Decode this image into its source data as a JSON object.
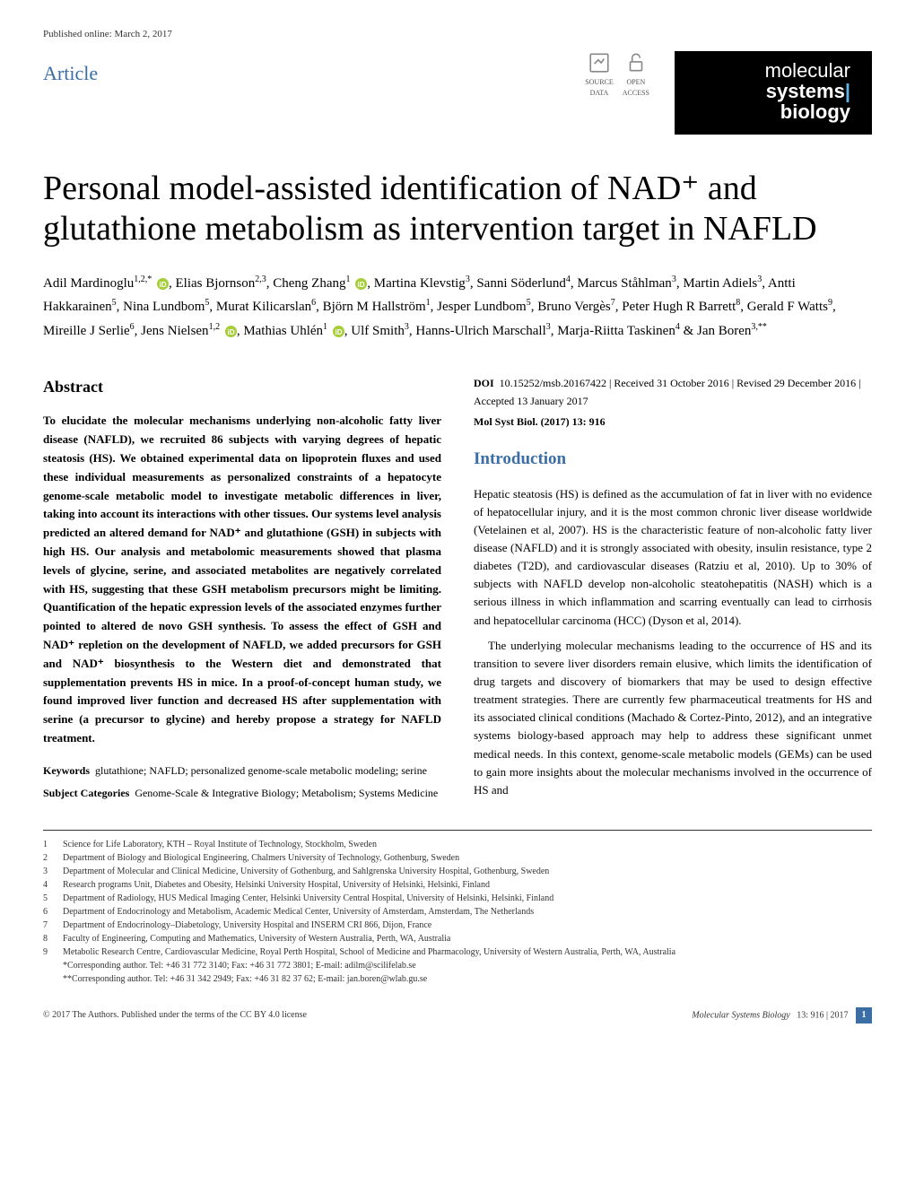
{
  "meta": {
    "published_online": "Published online: March 2, 2017"
  },
  "header": {
    "article_label": "Article",
    "badges": {
      "source_data": "SOURCE\nDATA",
      "open_access": "OPEN\nACCESS"
    },
    "journal": {
      "l1": "molecular",
      "l2a": "systems",
      "l3": "biology"
    }
  },
  "title": "Personal model-assisted identification of NAD⁺ and glutathione metabolism as intervention target in NAFLD",
  "authors_html": "Adil Mardinoglu<sup>1,2,*</sup> [ORCID], Elias Bjornson<sup>2,3</sup>, Cheng Zhang<sup>1</sup> [ORCID], Martina Klevstig<sup>3</sup>, Sanni Söderlund<sup>4</sup>, Marcus Ståhlman<sup>3</sup>, Martin Adiels<sup>3</sup>, Antti Hakkarainen<sup>5</sup>, Nina Lundbom<sup>5</sup>, Murat Kilicarslan<sup>6</sup>, Björn M Hallström<sup>1</sup>, Jesper Lundbom<sup>5</sup>, Bruno Vergès<sup>7</sup>, Peter Hugh R Barrett<sup>8</sup>, Gerald F Watts<sup>9</sup>, Mireille J Serlie<sup>6</sup>, Jens Nielsen<sup>1,2</sup> [ORCID], Mathias Uhlén<sup>1</sup> [ORCID], Ulf Smith<sup>3</sup>, Hanns-Ulrich Marschall<sup>3</sup>, Marja-Riitta Taskinen<sup>4</sup> & Jan Boren<sup>3,**</sup>",
  "abstract": {
    "heading": "Abstract",
    "text": "To elucidate the molecular mechanisms underlying non-alcoholic fatty liver disease (NAFLD), we recruited 86 subjects with varying degrees of hepatic steatosis (HS). We obtained experimental data on lipoprotein fluxes and used these individual measurements as personalized constraints of a hepatocyte genome-scale metabolic model to investigate metabolic differences in liver, taking into account its interactions with other tissues. Our systems level analysis predicted an altered demand for NAD⁺ and glutathione (GSH) in subjects with high HS. Our analysis and metabolomic measurements showed that plasma levels of glycine, serine, and associated metabolites are negatively correlated with HS, suggesting that these GSH metabolism precursors might be limiting. Quantification of the hepatic expression levels of the associated enzymes further pointed to altered de novo GSH synthesis. To assess the effect of GSH and NAD⁺ repletion on the development of NAFLD, we added precursors for GSH and NAD⁺ biosynthesis to the Western diet and demonstrated that supplementation prevents HS in mice. In a proof-of-concept human study, we found improved liver function and decreased HS after supplementation with serine (a precursor to glycine) and hereby propose a strategy for NAFLD treatment."
  },
  "keywords": {
    "label": "Keywords",
    "text": "glutathione; NAFLD; personalized genome-scale metabolic modeling; serine"
  },
  "subject_categories": {
    "label": "Subject Categories",
    "text": "Genome-Scale & Integrative Biology; Metabolism; Systems Medicine"
  },
  "doi_block": {
    "doi_label": "DOI",
    "doi": "10.15252/msb.20167422",
    "dates": "Received 31 October 2016 | Revised 29 December 2016 | Accepted 13 January 2017",
    "journal_ref": "Mol Syst Biol. (2017) 13: 916"
  },
  "introduction": {
    "heading": "Introduction",
    "p1": "Hepatic steatosis (HS) is defined as the accumulation of fat in liver with no evidence of hepatocellular injury, and it is the most common chronic liver disease worldwide (Vetelainen et al, 2007). HS is the characteristic feature of non-alcoholic fatty liver disease (NAFLD) and it is strongly associated with obesity, insulin resistance, type 2 diabetes (T2D), and cardiovascular diseases (Ratziu et al, 2010). Up to 30% of subjects with NAFLD develop non-alcoholic steatohepatitis (NASH) which is a serious illness in which inflammation and scarring eventually can lead to cirrhosis and hepatocellular carcinoma (HCC) (Dyson et al, 2014).",
    "p2": "The underlying molecular mechanisms leading to the occurrence of HS and its transition to severe liver disorders remain elusive, which limits the identification of drug targets and discovery of biomarkers that may be used to design effective treatment strategies. There are currently few pharmaceutical treatments for HS and its associated clinical conditions (Machado & Cortez-Pinto, 2012), and an integrative systems biology-based approach may help to address these significant unmet medical needs. In this context, genome-scale metabolic models (GEMs) can be used to gain more insights about the molecular mechanisms involved in the occurrence of HS and"
  },
  "affiliations": [
    {
      "n": "1",
      "t": "Science for Life Laboratory, KTH – Royal Institute of Technology, Stockholm, Sweden"
    },
    {
      "n": "2",
      "t": "Department of Biology and Biological Engineering, Chalmers University of Technology, Gothenburg, Sweden"
    },
    {
      "n": "3",
      "t": "Department of Molecular and Clinical Medicine, University of Gothenburg, and Sahlgrenska University Hospital, Gothenburg, Sweden"
    },
    {
      "n": "4",
      "t": "Research programs Unit, Diabetes and Obesity, Helsinki University Hospital, University of Helsinki, Helsinki, Finland"
    },
    {
      "n": "5",
      "t": "Department of Radiology, HUS Medical Imaging Center, Helsinki University Central Hospital, University of Helsinki, Helsinki, Finland"
    },
    {
      "n": "6",
      "t": "Department of Endocrinology and Metabolism, Academic Medical Center, University of Amsterdam, Amsterdam, The Netherlands"
    },
    {
      "n": "7",
      "t": "Department of Endocrinology–Diabetology, University Hospital and INSERM CRI 866, Dijon, France"
    },
    {
      "n": "8",
      "t": "Faculty of Engineering, Computing and Mathematics, University of Western Australia, Perth, WA, Australia"
    },
    {
      "n": "9",
      "t": "Metabolic Research Centre, Cardiovascular Medicine, Royal Perth Hospital, School of Medicine and Pharmacology, University of Western Australia, Perth, WA, Australia"
    }
  ],
  "corresponding": {
    "c1": "*Corresponding author. Tel: +46 31 772 3140; Fax: +46 31 772 3801; E-mail: adilm@scilifelab.se",
    "c2": "**Corresponding author. Tel: +46 31 342 2949; Fax: +46 31 82 37 62; E-mail: jan.boren@wlab.gu.se"
  },
  "footer": {
    "left": "© 2017 The Authors. Published under the terms of the CC BY 4.0 license",
    "journal": "Molecular Systems Biology",
    "issue": "13: 916 | 2017",
    "page": "1"
  },
  "colors": {
    "brand_blue": "#3a6ea5",
    "orcid_green": "#a6ce39",
    "black": "#000000"
  }
}
